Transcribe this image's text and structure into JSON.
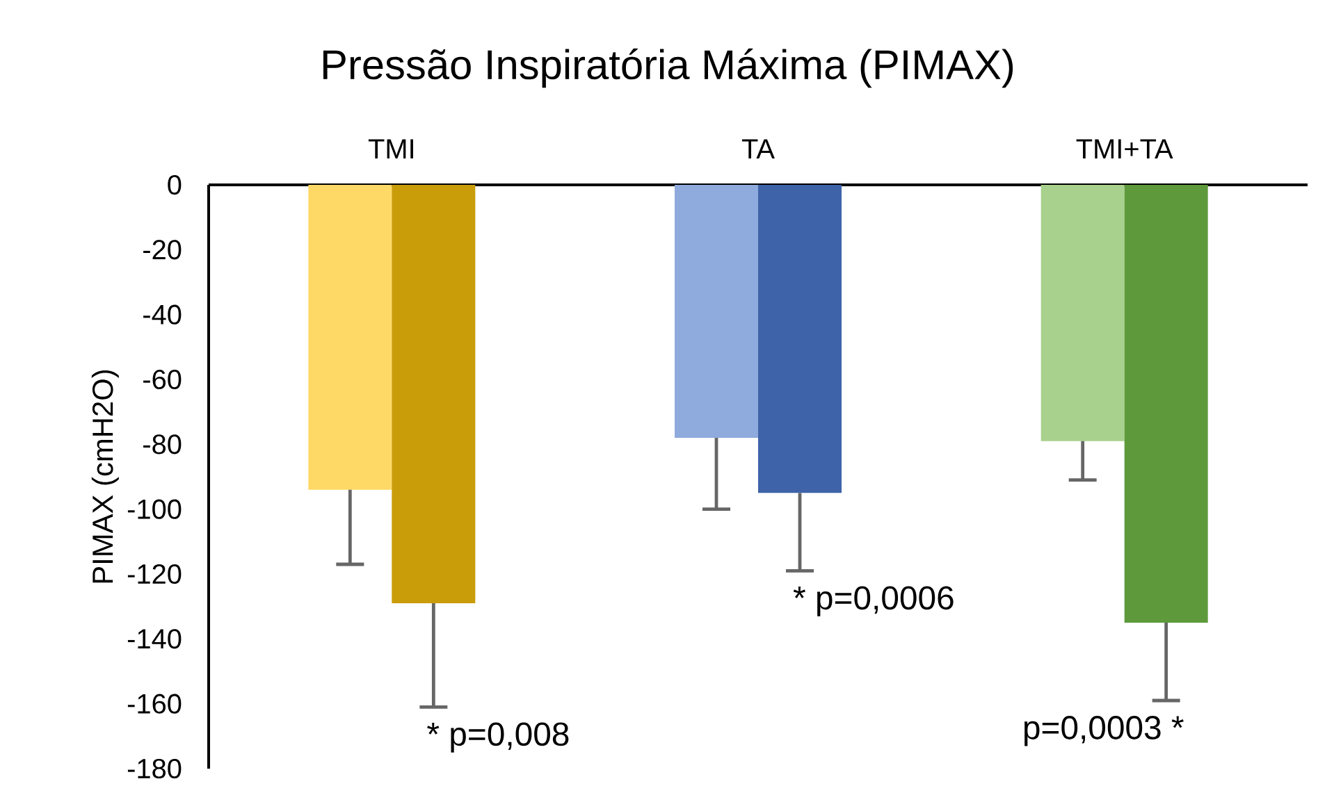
{
  "chart_data": {
    "type": "bar",
    "title": "Pressão Inspiratória Máxima (PIMAX)",
    "ylabel": "PIMAX (cmH2O)",
    "categories": [
      "TMI",
      "TA",
      "TMI+TA"
    ],
    "series": [
      {
        "colors": [
          "#ffd966",
          "#8faadc",
          "#a9d18e"
        ],
        "values": [
          -94,
          -78,
          -79
        ],
        "errors": [
          [
            -117,
            -94
          ],
          [
            -100,
            -78
          ],
          [
            -91,
            -79
          ]
        ]
      },
      {
        "colors": [
          "#c99c0a",
          "#3e63a8",
          "#5e9a3c"
        ],
        "values": [
          -129,
          -95,
          -135
        ],
        "errors": [
          [
            -161,
            -129
          ],
          [
            -119,
            -95
          ],
          [
            -159,
            -135
          ]
        ]
      }
    ],
    "ylim": [
      -180,
      0
    ],
    "yticks": [
      0,
      -20,
      -40,
      -60,
      -80,
      -100,
      -120,
      -140,
      -160,
      -180
    ],
    "annotations": [
      "* p=0,008",
      "* p=0,0006",
      "p=0,0003 *"
    ],
    "grid": false
  }
}
